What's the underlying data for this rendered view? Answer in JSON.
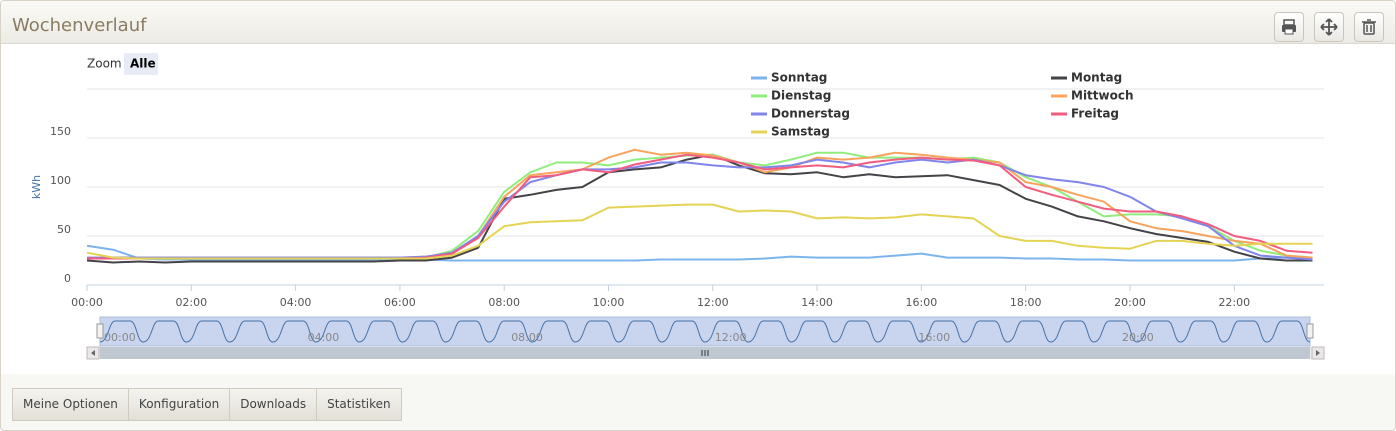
{
  "header": {
    "title": "Wochenverlauf"
  },
  "tabs": [
    "Meine Optionen",
    "Konfiguration",
    "Downloads",
    "Statistiken"
  ],
  "chart_data": {
    "type": "line",
    "y_label": "kWh",
    "range_selector": {
      "label": "Zoom",
      "buttons": [
        "Alle"
      ]
    },
    "x": [
      0,
      0.5,
      1,
      1.5,
      2,
      2.5,
      3,
      3.5,
      4,
      4.5,
      5,
      5.5,
      6,
      6.5,
      7,
      7.5,
      8,
      8.5,
      9,
      9.5,
      10,
      10.5,
      11,
      11.5,
      12,
      12.5,
      13,
      13.5,
      14,
      14.5,
      15,
      15.5,
      16,
      16.5,
      17,
      17.5,
      18,
      18.5,
      19,
      19.5,
      20,
      20.5,
      21,
      21.5,
      22,
      22.5,
      23,
      23.5
    ],
    "xlim": [
      0,
      23.72
    ],
    "xticks": [
      {
        "value": 0,
        "label": "00:00"
      },
      {
        "value": 2,
        "label": "02:00"
      },
      {
        "value": 4,
        "label": "04:00"
      },
      {
        "value": 6,
        "label": "06:00"
      },
      {
        "value": 8,
        "label": "08:00"
      },
      {
        "value": 10,
        "label": "10:00"
      },
      {
        "value": 12,
        "label": "12:00"
      },
      {
        "value": 14,
        "label": "14:00"
      },
      {
        "value": 16,
        "label": "16:00"
      },
      {
        "value": 18,
        "label": "18:00"
      },
      {
        "value": 20,
        "label": "20:00"
      },
      {
        "value": 22,
        "label": "22:00"
      }
    ],
    "ylim": [
      0,
      200
    ],
    "yticks": [
      0,
      50,
      100,
      150
    ],
    "grid": true,
    "navigator_labels": [
      "00:00",
      "04:00",
      "08:00",
      "12:00",
      "16:00",
      "20:00"
    ],
    "series": [
      {
        "name": "Sonntag",
        "color": "#7cb5ec",
        "values": [
          40,
          36,
          27,
          26,
          26,
          26,
          26,
          26,
          26,
          26,
          26,
          26,
          26,
          26,
          25,
          25,
          25,
          25,
          25,
          25,
          25,
          25,
          26,
          26,
          26,
          26,
          27,
          29,
          28,
          28,
          28,
          30,
          32,
          28,
          28,
          28,
          27,
          27,
          26,
          26,
          25,
          25,
          25,
          25,
          25,
          27,
          28,
          28
        ]
      },
      {
        "name": "Montag",
        "color": "#434348",
        "values": [
          25,
          23,
          24,
          23,
          24,
          24,
          24,
          24,
          24,
          24,
          24,
          24,
          25,
          25,
          28,
          38,
          88,
          92,
          97,
          100,
          115,
          118,
          120,
          128,
          133,
          122,
          114,
          113,
          115,
          110,
          113,
          110,
          111,
          112,
          107,
          102,
          88,
          80,
          70,
          65,
          58,
          52,
          48,
          44,
          34,
          27,
          25,
          25
        ]
      },
      {
        "name": "Dienstag",
        "color": "#90ed7d",
        "values": [
          27,
          27,
          27,
          27,
          27,
          27,
          27,
          27,
          27,
          27,
          27,
          27,
          27,
          28,
          35,
          55,
          95,
          115,
          125,
          125,
          122,
          128,
          130,
          132,
          133,
          125,
          122,
          128,
          135,
          135,
          130,
          130,
          130,
          128,
          130,
          125,
          110,
          100,
          85,
          70,
          72,
          72,
          70,
          60,
          45,
          35,
          30,
          28
        ]
      },
      {
        "name": "Mittwoch",
        "color": "#f7a35c",
        "values": [
          28,
          28,
          28,
          28,
          28,
          28,
          28,
          28,
          28,
          28,
          28,
          28,
          28,
          29,
          32,
          50,
          90,
          112,
          115,
          118,
          130,
          138,
          133,
          135,
          132,
          125,
          115,
          120,
          130,
          128,
          130,
          135,
          133,
          130,
          128,
          125,
          105,
          100,
          92,
          85,
          65,
          58,
          55,
          50,
          45,
          42,
          30,
          28
        ]
      },
      {
        "name": "Donnerstag",
        "color": "#8085e9",
        "values": [
          28,
          28,
          28,
          28,
          28,
          28,
          28,
          28,
          28,
          28,
          28,
          28,
          28,
          29,
          33,
          50,
          85,
          105,
          112,
          118,
          118,
          120,
          125,
          125,
          122,
          120,
          120,
          122,
          128,
          125,
          120,
          125,
          128,
          125,
          128,
          122,
          112,
          108,
          105,
          100,
          90,
          75,
          68,
          60,
          40,
          30,
          28,
          26
        ]
      },
      {
        "name": "Freitag",
        "color": "#f15c80",
        "values": [
          27,
          27,
          27,
          27,
          27,
          27,
          27,
          27,
          27,
          27,
          27,
          27,
          27,
          28,
          32,
          48,
          80,
          110,
          112,
          118,
          115,
          123,
          128,
          133,
          130,
          125,
          118,
          120,
          122,
          120,
          125,
          128,
          130,
          128,
          127,
          122,
          100,
          92,
          85,
          78,
          75,
          75,
          70,
          62,
          50,
          45,
          35,
          33
        ]
      },
      {
        "name": "Samstag",
        "color": "#e4d354",
        "values": [
          33,
          28,
          27,
          27,
          27,
          27,
          27,
          27,
          27,
          27,
          27,
          27,
          27,
          27,
          30,
          40,
          60,
          64,
          65,
          66,
          79,
          80,
          81,
          82,
          82,
          75,
          76,
          75,
          68,
          69,
          68,
          69,
          72,
          70,
          68,
          50,
          45,
          45,
          40,
          38,
          37,
          45,
          45,
          42,
          40,
          42,
          42,
          42
        ]
      }
    ]
  }
}
